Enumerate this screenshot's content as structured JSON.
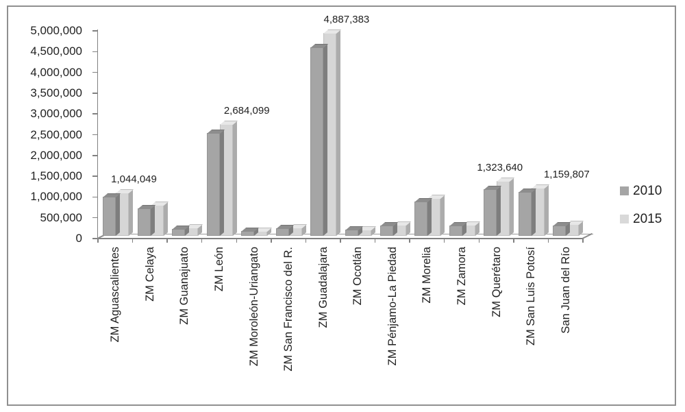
{
  "chart_data": {
    "type": "bar",
    "variant": "3d-clustered-column",
    "title": "",
    "xlabel": "",
    "ylabel": "",
    "categories": [
      "ZM Aguascalientes",
      "ZM Celaya",
      "ZM Guanajuato",
      "ZM León",
      "ZM Moroleón-Uriangato",
      "ZM San Francisco del R.",
      "ZM Guadalajara",
      "ZM Ocotlán",
      "ZM Pénjamo-La Piedad",
      "ZM Morelia",
      "ZM Zamora",
      "ZM Querétaro",
      "ZM San Luis Potosí",
      "San Juan del Río"
    ],
    "series": [
      {
        "name": "2010",
        "values": [
          935000,
          665000,
          170000,
          2480000,
          110000,
          180000,
          4530000,
          148000,
          255000,
          820000,
          255000,
          1120000,
          1050000,
          250000
        ]
      },
      {
        "name": "2015",
        "values": [
          1044049,
          740000,
          190000,
          2684099,
          118000,
          198000,
          4887383,
          156000,
          265000,
          915000,
          270000,
          1323640,
          1159807,
          280000
        ]
      }
    ],
    "data_labels": [
      {
        "series": "2015",
        "category_index": 0,
        "text": "1,044,049"
      },
      {
        "series": "2015",
        "category_index": 3,
        "text": "2,684,099"
      },
      {
        "series": "2015",
        "category_index": 6,
        "text": "4,887,383"
      },
      {
        "series": "2015",
        "category_index": 11,
        "text": "1,323,640"
      },
      {
        "series": "2015",
        "category_index": 12,
        "text": "1,159,807"
      }
    ],
    "y_axis": {
      "min": 0,
      "max": 5000000,
      "step": 500000,
      "tick_labels": [
        "0",
        "500,000",
        "1,000,000",
        "1,500,000",
        "2,000,000",
        "2,500,000",
        "3,000,000",
        "3,500,000",
        "4,000,000",
        "4,500,000",
        "5,000,000"
      ]
    },
    "legend": {
      "position": "right",
      "entries": [
        {
          "label": "2010",
          "color": "#a5a5a5"
        },
        {
          "label": "2015",
          "color": "#d9d9d9"
        }
      ]
    },
    "grid": false
  },
  "colors": {
    "background": "#ffffff",
    "frame": "#8f8f8f",
    "axis": "#808080",
    "text": "#1f1f1f",
    "series_2010": {
      "front": "#a5a5a5",
      "top": "#8d8d8d",
      "side": "#7e7e7e"
    },
    "series_2015": {
      "front": "#d6d6d6",
      "top": "#e7e7e7",
      "side": "#acacac"
    }
  }
}
